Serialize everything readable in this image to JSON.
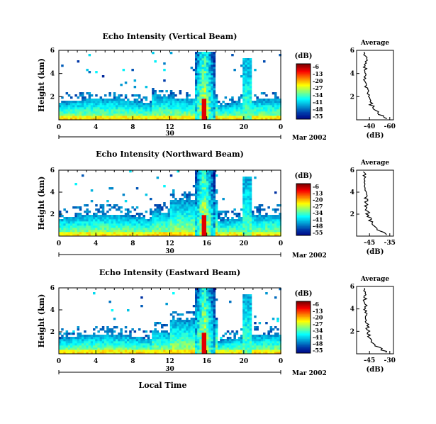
{
  "chart_data": [
    {
      "type": "heatmap",
      "title": "Echo Intensity (Vertical Beam)",
      "ylabel": "Height (km)",
      "xlabel": "",
      "x_ticks": [
        "0",
        "4",
        "8",
        "12",
        "16",
        "20",
        "0"
      ],
      "y_ticks": [
        "6",
        "4",
        "2"
      ],
      "xlim": [
        0,
        24
      ],
      "ylim": [
        0,
        6
      ],
      "date_day": "30",
      "date_month": "Mar 2002",
      "colorbar": {
        "unit": "(dB)",
        "ticks": [
          "-6",
          "-13",
          "-20",
          "-27",
          "-34",
          "-41",
          "-48",
          "-55"
        ]
      },
      "average": {
        "title": "Average",
        "xlabel": "(dB)",
        "x_ticks": [
          "-40",
          "-60"
        ],
        "y_ticks": [
          "6",
          "4",
          "2"
        ]
      }
    },
    {
      "type": "heatmap",
      "title": "Echo Intensity (Northward Beam)",
      "ylabel": "Height (km)",
      "xlabel": "",
      "x_ticks": [
        "0",
        "4",
        "8",
        "12",
        "16",
        "20",
        "0"
      ],
      "y_ticks": [
        "6",
        "4",
        "2"
      ],
      "xlim": [
        0,
        24
      ],
      "ylim": [
        0,
        6
      ],
      "date_day": "30",
      "date_month": "Mar 2002",
      "colorbar": {
        "unit": "(dB)",
        "ticks": [
          "-6",
          "-13",
          "-20",
          "-27",
          "-34",
          "-41",
          "-48",
          "-55"
        ]
      },
      "average": {
        "title": "Average",
        "xlabel": "(dB)",
        "x_ticks": [
          "-45",
          "-35"
        ],
        "y_ticks": [
          "6",
          "4",
          "2"
        ]
      }
    },
    {
      "type": "heatmap",
      "title": "Echo Intensity (Eastward Beam)",
      "ylabel": "Height (km)",
      "xlabel": "Local Time",
      "x_ticks": [
        "0",
        "4",
        "8",
        "12",
        "16",
        "20",
        "0"
      ],
      "y_ticks": [
        "6",
        "4",
        "2"
      ],
      "xlim": [
        0,
        24
      ],
      "ylim": [
        0,
        6
      ],
      "date_day": "30",
      "date_month": "Mar 2002",
      "colorbar": {
        "unit": "(dB)",
        "ticks": [
          "-6",
          "-13",
          "-20",
          "-27",
          "-34",
          "-41",
          "-48",
          "-55"
        ]
      },
      "average": {
        "title": "Average",
        "xlabel": "(dB)",
        "x_ticks": [
          "-45",
          "-30"
        ],
        "y_ticks": [
          "6",
          "4",
          "2"
        ]
      }
    }
  ]
}
